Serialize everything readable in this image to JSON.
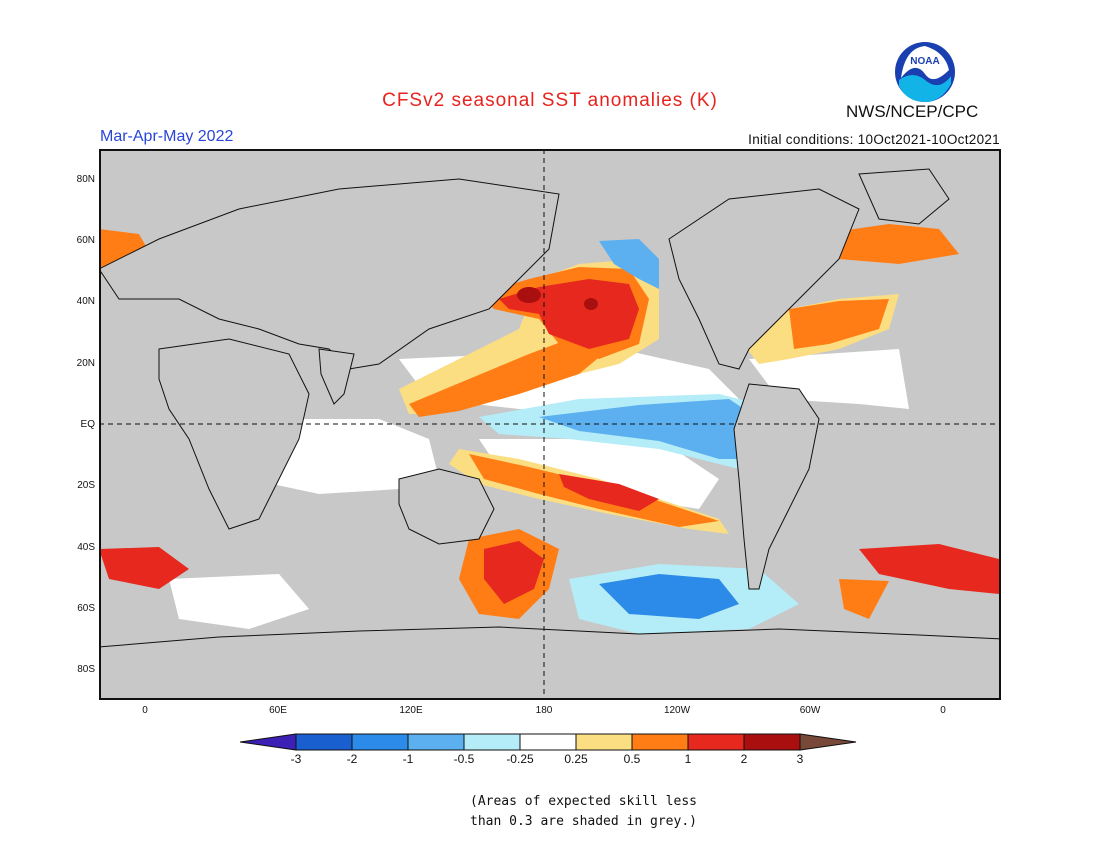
{
  "header": {
    "title": "CFSv2 seasonal SST anomalies (K)",
    "season": "Mar-Apr-May 2022",
    "initial_conditions": "Initial conditions: 10Oct2021-10Oct2021",
    "agency": "NWS/NCEP/CPC",
    "logo_text": "NOAA"
  },
  "map": {
    "lat_labels": [
      "80N",
      "60N",
      "40N",
      "20N",
      "EQ",
      "20S",
      "40S",
      "60S",
      "80S"
    ],
    "lon_labels": [
      "0",
      "60E",
      "120E",
      "180",
      "120W",
      "60W",
      "0"
    ],
    "land_color": "#c8c8c8",
    "neutral_color": "#ffffff",
    "regions": [
      {
        "name": "north-pacific-warm-core",
        "level": 2
      },
      {
        "name": "north-pacific-warm-center",
        "level": 3
      },
      {
        "name": "west-pacific-warm-band",
        "level": 1
      },
      {
        "name": "south-pacific-warm-band",
        "level": 1
      },
      {
        "name": "equatorial-pacific-cool-tongue",
        "level": -1
      },
      {
        "name": "southern-ocean-cool",
        "level": -1
      },
      {
        "name": "tasman-sea-warm",
        "level": 2
      },
      {
        "name": "north-atlantic-warm",
        "level": 1
      },
      {
        "name": "south-atlantic-warm",
        "level": 1
      },
      {
        "name": "southwest-indian-warm",
        "level": 1
      },
      {
        "name": "northeast-pacific-cool",
        "level": -0.5
      }
    ]
  },
  "colorbar": {
    "labels": [
      "-3",
      "-2",
      "-1",
      "-0.5",
      "-0.25",
      "0.25",
      "0.5",
      "1",
      "2",
      "3"
    ],
    "colors": [
      "#3c1fb4",
      "#1a5fd0",
      "#2c8ae8",
      "#5cb0f0",
      "#b4ecf8",
      "#ffffff",
      "#fcde82",
      "#ff7d14",
      "#e6281e",
      "#aa0f0f",
      "#784838"
    ]
  },
  "note": {
    "line1": "(Areas of expected skill less",
    "line2": "than 0.3 are shaded in grey.)"
  }
}
